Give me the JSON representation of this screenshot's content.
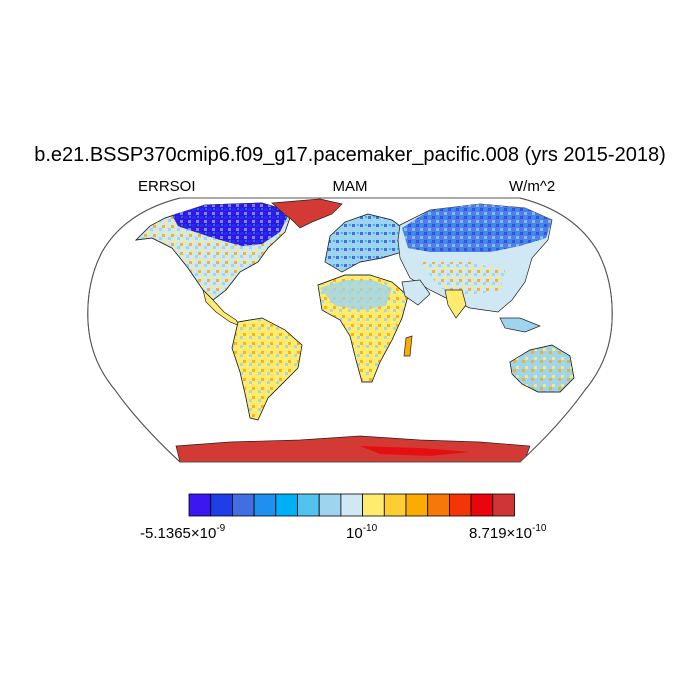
{
  "title": "b.e21.BSSP370cmip6.f09_g17.pacemaker_pacific.008 (yrs 2015-2018)",
  "subtitle": {
    "left": "ERRSOI",
    "center": "MAM",
    "right": "W/m^2"
  },
  "map": {
    "projection": "Robinson",
    "variable": "ERRSOI",
    "season": "MAM",
    "units": "W/m^2",
    "regions": [
      {
        "name": "greenland",
        "color": "#d33a33"
      },
      {
        "name": "antarctica",
        "color": "#d33a33"
      },
      {
        "name": "canada-arctic",
        "color": "#3218e6"
      },
      {
        "name": "siberia",
        "color": "#4f7fe6"
      }
    ]
  },
  "colorbar": {
    "colors": [
      "#3c17f0",
      "#1f3ee6",
      "#416ee0",
      "#1f8ff0",
      "#00b0f6",
      "#54c2ef",
      "#9fd4ee",
      "#cfe8f4",
      "#ffeb6e",
      "#fdcd31",
      "#fcab05",
      "#f77808",
      "#f33606",
      "#e8050b",
      "#d03535"
    ],
    "label_min": {
      "mantissa": "-5.1365×10",
      "exponent": "-9"
    },
    "label_mid": {
      "mantissa": "10",
      "exponent": "-10"
    },
    "label_max": {
      "mantissa": "8.719×10",
      "exponent": "-10"
    }
  }
}
